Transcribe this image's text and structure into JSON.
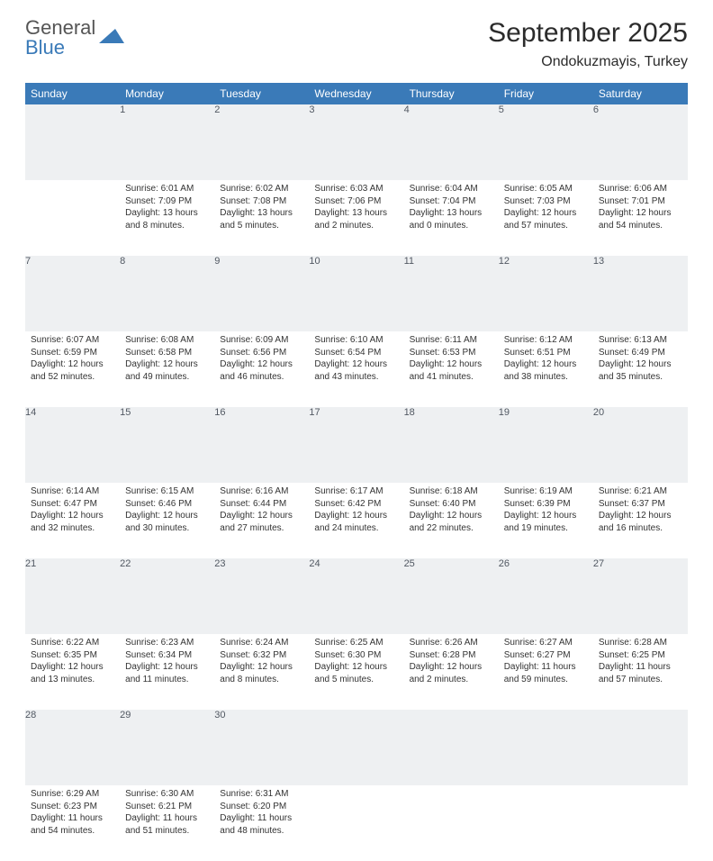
{
  "brand": {
    "top": "General",
    "bottom": "Blue"
  },
  "title": "September 2025",
  "location": "Ondokuzmayis, Turkey",
  "theme": {
    "header_bg": "#3a7ab8",
    "header_text": "#ffffff",
    "daynum_bg": "#eef0f2",
    "daynum_text": "#515862",
    "rule_color": "#3a7ab8",
    "body_text": "#333333",
    "font_family": "Arial, Helvetica, sans-serif",
    "title_fontsize": 30,
    "location_fontsize": 16,
    "day_header_fontsize": 12,
    "cell_fontsize": 10
  },
  "days": [
    "Sunday",
    "Monday",
    "Tuesday",
    "Wednesday",
    "Thursday",
    "Friday",
    "Saturday"
  ],
  "first_weekday_index": 1,
  "num_days": 30,
  "cells": {
    "1": {
      "sunrise": "6:01 AM",
      "sunset": "7:09 PM",
      "daylight": "13 hours and 8 minutes."
    },
    "2": {
      "sunrise": "6:02 AM",
      "sunset": "7:08 PM",
      "daylight": "13 hours and 5 minutes."
    },
    "3": {
      "sunrise": "6:03 AM",
      "sunset": "7:06 PM",
      "daylight": "13 hours and 2 minutes."
    },
    "4": {
      "sunrise": "6:04 AM",
      "sunset": "7:04 PM",
      "daylight": "13 hours and 0 minutes."
    },
    "5": {
      "sunrise": "6:05 AM",
      "sunset": "7:03 PM",
      "daylight": "12 hours and 57 minutes."
    },
    "6": {
      "sunrise": "6:06 AM",
      "sunset": "7:01 PM",
      "daylight": "12 hours and 54 minutes."
    },
    "7": {
      "sunrise": "6:07 AM",
      "sunset": "6:59 PM",
      "daylight": "12 hours and 52 minutes."
    },
    "8": {
      "sunrise": "6:08 AM",
      "sunset": "6:58 PM",
      "daylight": "12 hours and 49 minutes."
    },
    "9": {
      "sunrise": "6:09 AM",
      "sunset": "6:56 PM",
      "daylight": "12 hours and 46 minutes."
    },
    "10": {
      "sunrise": "6:10 AM",
      "sunset": "6:54 PM",
      "daylight": "12 hours and 43 minutes."
    },
    "11": {
      "sunrise": "6:11 AM",
      "sunset": "6:53 PM",
      "daylight": "12 hours and 41 minutes."
    },
    "12": {
      "sunrise": "6:12 AM",
      "sunset": "6:51 PM",
      "daylight": "12 hours and 38 minutes."
    },
    "13": {
      "sunrise": "6:13 AM",
      "sunset": "6:49 PM",
      "daylight": "12 hours and 35 minutes."
    },
    "14": {
      "sunrise": "6:14 AM",
      "sunset": "6:47 PM",
      "daylight": "12 hours and 32 minutes."
    },
    "15": {
      "sunrise": "6:15 AM",
      "sunset": "6:46 PM",
      "daylight": "12 hours and 30 minutes."
    },
    "16": {
      "sunrise": "6:16 AM",
      "sunset": "6:44 PM",
      "daylight": "12 hours and 27 minutes."
    },
    "17": {
      "sunrise": "6:17 AM",
      "sunset": "6:42 PM",
      "daylight": "12 hours and 24 minutes."
    },
    "18": {
      "sunrise": "6:18 AM",
      "sunset": "6:40 PM",
      "daylight": "12 hours and 22 minutes."
    },
    "19": {
      "sunrise": "6:19 AM",
      "sunset": "6:39 PM",
      "daylight": "12 hours and 19 minutes."
    },
    "20": {
      "sunrise": "6:21 AM",
      "sunset": "6:37 PM",
      "daylight": "12 hours and 16 minutes."
    },
    "21": {
      "sunrise": "6:22 AM",
      "sunset": "6:35 PM",
      "daylight": "12 hours and 13 minutes."
    },
    "22": {
      "sunrise": "6:23 AM",
      "sunset": "6:34 PM",
      "daylight": "12 hours and 11 minutes."
    },
    "23": {
      "sunrise": "6:24 AM",
      "sunset": "6:32 PM",
      "daylight": "12 hours and 8 minutes."
    },
    "24": {
      "sunrise": "6:25 AM",
      "sunset": "6:30 PM",
      "daylight": "12 hours and 5 minutes."
    },
    "25": {
      "sunrise": "6:26 AM",
      "sunset": "6:28 PM",
      "daylight": "12 hours and 2 minutes."
    },
    "26": {
      "sunrise": "6:27 AM",
      "sunset": "6:27 PM",
      "daylight": "11 hours and 59 minutes."
    },
    "27": {
      "sunrise": "6:28 AM",
      "sunset": "6:25 PM",
      "daylight": "11 hours and 57 minutes."
    },
    "28": {
      "sunrise": "6:29 AM",
      "sunset": "6:23 PM",
      "daylight": "11 hours and 54 minutes."
    },
    "29": {
      "sunrise": "6:30 AM",
      "sunset": "6:21 PM",
      "daylight": "11 hours and 51 minutes."
    },
    "30": {
      "sunrise": "6:31 AM",
      "sunset": "6:20 PM",
      "daylight": "11 hours and 48 minutes."
    }
  },
  "labels": {
    "sunrise": "Sunrise:",
    "sunset": "Sunset:",
    "daylight": "Daylight:"
  }
}
